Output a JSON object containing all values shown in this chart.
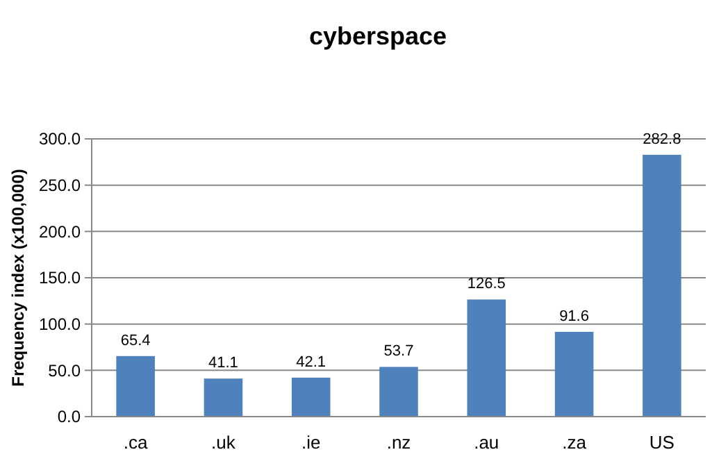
{
  "chart_data": {
    "type": "bar",
    "title": "cyberspace",
    "ylabel": "Frequency index (x100,000)",
    "categories": [
      ".ca",
      ".uk",
      ".ie",
      ".nz",
      ".au",
      ".za",
      "US"
    ],
    "values": [
      65.4,
      41.1,
      42.1,
      53.7,
      126.5,
      91.6,
      282.8
    ],
    "color": "#4f81bd",
    "ylim": [
      0,
      300
    ],
    "yticks": [
      {
        "value": 0,
        "label": "0.0"
      },
      {
        "value": 50,
        "label": "50.0"
      },
      {
        "value": 100,
        "label": "100.0"
      },
      {
        "value": 150,
        "label": "150.0"
      },
      {
        "value": 200,
        "label": "200.0"
      },
      {
        "value": 250,
        "label": "250.0"
      },
      {
        "value": 300,
        "label": "300.0"
      }
    ],
    "grid": "y",
    "data_labels": true
  }
}
